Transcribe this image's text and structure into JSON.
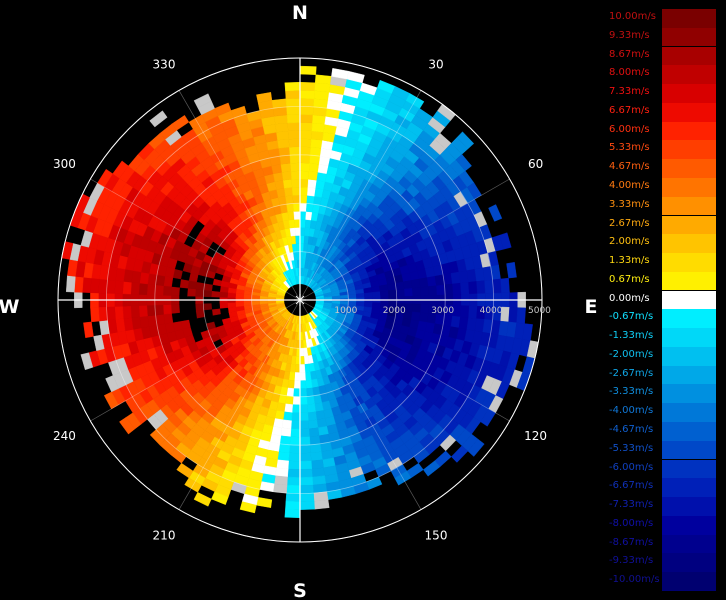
{
  "chart_data": {
    "type": "heatmap",
    "subtype": "polar-ppi-radial-velocity",
    "compass_labels": {
      "north": "N",
      "east": "E",
      "south": "S",
      "west": "W"
    },
    "azimuth_labels": [
      {
        "deg": 30,
        "text": "30"
      },
      {
        "deg": 60,
        "text": "60"
      },
      {
        "deg": 120,
        "text": "120"
      },
      {
        "deg": 150,
        "text": "150"
      },
      {
        "deg": 210,
        "text": "210"
      },
      {
        "deg": 240,
        "text": "240"
      },
      {
        "deg": 300,
        "text": "300"
      },
      {
        "deg": 330,
        "text": "330"
      }
    ],
    "range_rings": [
      1000,
      2000,
      3000,
      4000,
      5000
    ],
    "range_labels": [
      "1000",
      "2000",
      "3000",
      "4000",
      "5000"
    ],
    "max_range": 5000,
    "velocity_range": [
      -10,
      10
    ],
    "color_scale": [
      {
        "value": 10.0,
        "label": "10.00m/s",
        "color": "#7a0000",
        "text_color": "#c01010"
      },
      {
        "value": 9.33,
        "label": "9.33m/s",
        "color": "#900000",
        "text_color": "#c01010"
      },
      {
        "value": 8.67,
        "label": "8.67m/s",
        "color": "#a80000",
        "text_color": "#d01010"
      },
      {
        "value": 8.0,
        "label": "8.00m/s",
        "color": "#c00000",
        "text_color": "#e01010"
      },
      {
        "value": 7.33,
        "label": "7.33m/s",
        "color": "#d80000",
        "text_color": "#f01010"
      },
      {
        "value": 6.67,
        "label": "6.67m/s",
        "color": "#ee0a00",
        "text_color": "#ff2010"
      },
      {
        "value": 6.0,
        "label": "6.00m/s",
        "color": "#ff2200",
        "text_color": "#ff3010"
      },
      {
        "value": 5.33,
        "label": "5.33m/s",
        "color": "#ff3e00",
        "text_color": "#ff4a10"
      },
      {
        "value": 4.67,
        "label": "4.67m/s",
        "color": "#ff5a00",
        "text_color": "#ff6010"
      },
      {
        "value": 4.0,
        "label": "4.00m/s",
        "color": "#ff7400",
        "text_color": "#ff7a10"
      },
      {
        "value": 3.33,
        "label": "3.33m/s",
        "color": "#ff9000",
        "text_color": "#ff9010"
      },
      {
        "value": 2.67,
        "label": "2.67m/s",
        "color": "#ffaa00",
        "text_color": "#ffaa10"
      },
      {
        "value": 2.0,
        "label": "2.00m/s",
        "color": "#ffc400",
        "text_color": "#ffc010"
      },
      {
        "value": 1.33,
        "label": "1.33m/s",
        "color": "#ffdc00",
        "text_color": "#ffd810"
      },
      {
        "value": 0.67,
        "label": "0.67m/s",
        "color": "#fff000",
        "text_color": "#ffee10"
      },
      {
        "value": 0.0,
        "label": "0.00m/s",
        "color": "#ffffff",
        "text_color": "#ffffff"
      },
      {
        "value": -0.67,
        "label": "-0.67m/s",
        "color": "#00eeff",
        "text_color": "#10e0ff"
      },
      {
        "value": -1.33,
        "label": "-1.33m/s",
        "color": "#00d8f8",
        "text_color": "#10d0f8"
      },
      {
        "value": -2.0,
        "label": "-2.00m/s",
        "color": "#00c0f0",
        "text_color": "#10c0f0"
      },
      {
        "value": -2.67,
        "label": "-2.67m/s",
        "color": "#00a8e8",
        "text_color": "#10a8e8"
      },
      {
        "value": -3.33,
        "label": "-3.33m/s",
        "color": "#0090e0",
        "text_color": "#1090e0"
      },
      {
        "value": -4.0,
        "label": "-4.00m/s",
        "color": "#0078d8",
        "text_color": "#1078d8"
      },
      {
        "value": -4.67,
        "label": "-4.67m/s",
        "color": "#0060d0",
        "text_color": "#1060d0"
      },
      {
        "value": -5.33,
        "label": "-5.33m/s",
        "color": "#0048c8",
        "text_color": "#1050c8"
      },
      {
        "value": -6.0,
        "label": "-6.00m/s",
        "color": "#0032c0",
        "text_color": "#1040c0"
      },
      {
        "value": -6.67,
        "label": "-6.67m/s",
        "color": "#0020b8",
        "text_color": "#1030b8"
      },
      {
        "value": -7.33,
        "label": "-7.33m/s",
        "color": "#0010ac",
        "text_color": "#1020b0"
      },
      {
        "value": -8.0,
        "label": "-8.00m/s",
        "color": "#00009e",
        "text_color": "#1010a8"
      },
      {
        "value": -8.67,
        "label": "-8.67m/s",
        "color": "#00008e",
        "text_color": "#1010a0"
      },
      {
        "value": -9.33,
        "label": "-9.33m/s",
        "color": "#000080",
        "text_color": "#101098"
      },
      {
        "value": -10.0,
        "label": "-10.00m/s",
        "color": "#000070",
        "text_color": "#101090"
      }
    ]
  }
}
